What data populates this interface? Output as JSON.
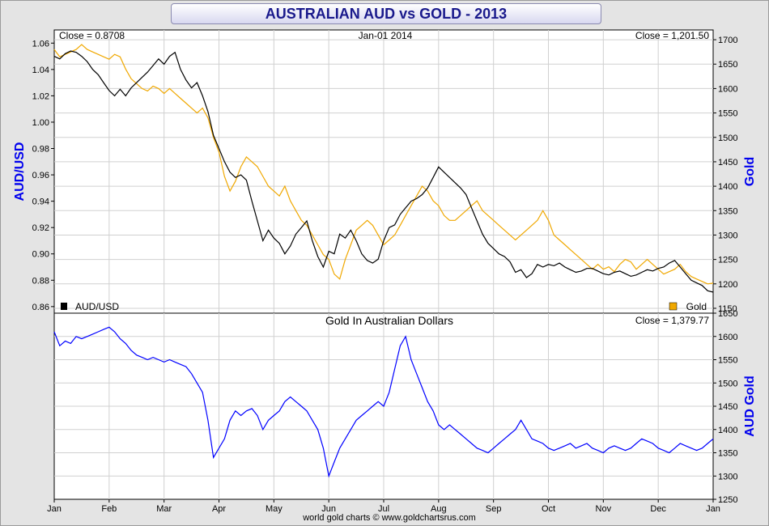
{
  "title": "AUSTRALIAN AUD vs GOLD - 2013",
  "footer": "world gold charts © www.goldchartsrus.com",
  "x_axis": {
    "labels": [
      "Jan",
      "Feb",
      "Mar",
      "Apr",
      "May",
      "Jun",
      "Jul",
      "Aug",
      "Sep",
      "Oct",
      "Nov",
      "Dec",
      "Jan"
    ]
  },
  "colors": {
    "aud": "#000000",
    "gold": "#f0a800",
    "aud_gold": "#0000ff",
    "axis_title": "#0000ee"
  },
  "chart_data": [
    {
      "type": "line",
      "header_left": "Close = 0.8708",
      "header_center": "Jan-01  2014",
      "header_right": "Close = 1,201.50",
      "left_axis": {
        "label": "AUD/USD",
        "range": [
          0.855,
          1.07
        ],
        "ticks": [
          "1.06",
          "1.04",
          "1.02",
          "1.00",
          "0.98",
          "0.96",
          "0.94",
          "0.92",
          "0.90",
          "0.88",
          "0.86"
        ]
      },
      "right_axis": {
        "label": "Gold",
        "range": [
          1140,
          1720
        ],
        "ticks": [
          "1700",
          "1650",
          "1600",
          "1550",
          "1500",
          "1450",
          "1400",
          "1350",
          "1300",
          "1250",
          "1200",
          "1150"
        ]
      },
      "legend": [
        {
          "name": "AUD/USD",
          "color": "#000000",
          "position": "bottom-left"
        },
        {
          "name": "Gold",
          "color": "#f0a800",
          "position": "bottom-right"
        }
      ],
      "series": [
        {
          "name": "AUD/USD",
          "axis": "left",
          "color": "#000000",
          "x": [
            0,
            0.1,
            0.2,
            0.3,
            0.4,
            0.5,
            0.6,
            0.7,
            0.8,
            0.9,
            1,
            1.1,
            1.2,
            1.3,
            1.4,
            1.5,
            1.6,
            1.7,
            1.8,
            1.9,
            2,
            2.1,
            2.2,
            2.3,
            2.4,
            2.5,
            2.6,
            2.7,
            2.8,
            2.9,
            3,
            3.1,
            3.2,
            3.3,
            3.4,
            3.5,
            3.6,
            3.7,
            3.8,
            3.9,
            4,
            4.1,
            4.2,
            4.3,
            4.4,
            4.5,
            4.6,
            4.7,
            4.8,
            4.9,
            5,
            5.1,
            5.2,
            5.3,
            5.4,
            5.5,
            5.6,
            5.7,
            5.8,
            5.9,
            6,
            6.1,
            6.2,
            6.3,
            6.4,
            6.5,
            6.6,
            6.7,
            6.8,
            6.9,
            7,
            7.1,
            7.2,
            7.3,
            7.4,
            7.5,
            7.6,
            7.7,
            7.8,
            7.9,
            8,
            8.1,
            8.2,
            8.3,
            8.4,
            8.5,
            8.6,
            8.7,
            8.8,
            8.9,
            9,
            9.1,
            9.2,
            9.3,
            9.4,
            9.5,
            9.6,
            9.7,
            9.8,
            9.9,
            10,
            10.1,
            10.2,
            10.3,
            10.4,
            10.5,
            10.6,
            10.7,
            10.8,
            10.9,
            11,
            11.1,
            11.2,
            11.3,
            11.4,
            11.5,
            11.6,
            11.7,
            11.8,
            11.9,
            12
          ],
          "values": [
            1.05,
            1.048,
            1.052,
            1.054,
            1.053,
            1.05,
            1.046,
            1.04,
            1.036,
            1.03,
            1.024,
            1.02,
            1.025,
            1.02,
            1.026,
            1.03,
            1.034,
            1.038,
            1.043,
            1.048,
            1.044,
            1.05,
            1.053,
            1.04,
            1.032,
            1.026,
            1.03,
            1.02,
            1.008,
            0.99,
            0.98,
            0.97,
            0.962,
            0.958,
            0.96,
            0.956,
            0.94,
            0.925,
            0.91,
            0.918,
            0.912,
            0.908,
            0.9,
            0.906,
            0.915,
            0.92,
            0.925,
            0.91,
            0.898,
            0.89,
            0.902,
            0.9,
            0.915,
            0.912,
            0.918,
            0.91,
            0.9,
            0.895,
            0.893,
            0.896,
            0.91,
            0.92,
            0.922,
            0.93,
            0.935,
            0.94,
            0.942,
            0.945,
            0.95,
            0.958,
            0.966,
            0.962,
            0.958,
            0.954,
            0.95,
            0.945,
            0.935,
            0.925,
            0.915,
            0.908,
            0.904,
            0.9,
            0.898,
            0.894,
            0.886,
            0.888,
            0.882,
            0.885,
            0.892,
            0.89,
            0.892,
            0.891,
            0.893,
            0.89,
            0.888,
            0.886,
            0.887,
            0.889,
            0.889,
            0.887,
            0.885,
            0.884,
            0.886,
            0.887,
            0.885,
            0.883,
            0.884,
            0.886,
            0.888,
            0.887,
            0.889,
            0.89,
            0.893,
            0.895,
            0.89,
            0.885,
            0.88,
            0.878,
            0.876,
            0.872,
            0.871
          ]
        },
        {
          "name": "Gold",
          "axis": "right",
          "color": "#f0a800",
          "x": [
            0,
            0.1,
            0.2,
            0.3,
            0.4,
            0.5,
            0.6,
            0.7,
            0.8,
            0.9,
            1,
            1.1,
            1.2,
            1.3,
            1.4,
            1.5,
            1.6,
            1.7,
            1.8,
            1.9,
            2,
            2.1,
            2.2,
            2.3,
            2.4,
            2.5,
            2.6,
            2.7,
            2.8,
            2.9,
            3,
            3.1,
            3.2,
            3.3,
            3.4,
            3.5,
            3.6,
            3.7,
            3.8,
            3.9,
            4,
            4.1,
            4.2,
            4.3,
            4.4,
            4.5,
            4.6,
            4.7,
            4.8,
            4.9,
            5,
            5.1,
            5.2,
            5.3,
            5.4,
            5.5,
            5.6,
            5.7,
            5.8,
            5.9,
            6,
            6.1,
            6.2,
            6.3,
            6.4,
            6.5,
            6.6,
            6.7,
            6.8,
            6.9,
            7,
            7.1,
            7.2,
            7.3,
            7.4,
            7.5,
            7.6,
            7.7,
            7.8,
            7.9,
            8,
            8.1,
            8.2,
            8.3,
            8.4,
            8.5,
            8.6,
            8.7,
            8.8,
            8.9,
            9,
            9.1,
            9.2,
            9.3,
            9.4,
            9.5,
            9.6,
            9.7,
            9.8,
            9.9,
            10,
            10.1,
            10.2,
            10.3,
            10.4,
            10.5,
            10.6,
            10.7,
            10.8,
            10.9,
            11,
            11.1,
            11.2,
            11.3,
            11.4,
            11.5,
            11.6,
            11.7,
            11.8,
            11.9,
            12
          ],
          "values": [
            1680,
            1665,
            1670,
            1675,
            1680,
            1690,
            1680,
            1675,
            1670,
            1665,
            1660,
            1670,
            1665,
            1640,
            1620,
            1610,
            1600,
            1595,
            1605,
            1600,
            1590,
            1600,
            1590,
            1580,
            1570,
            1560,
            1550,
            1560,
            1540,
            1500,
            1470,
            1420,
            1390,
            1410,
            1440,
            1460,
            1450,
            1440,
            1420,
            1400,
            1390,
            1380,
            1400,
            1370,
            1350,
            1330,
            1320,
            1300,
            1280,
            1260,
            1250,
            1220,
            1210,
            1250,
            1280,
            1310,
            1320,
            1330,
            1320,
            1300,
            1280,
            1290,
            1300,
            1320,
            1340,
            1360,
            1380,
            1400,
            1390,
            1370,
            1360,
            1340,
            1330,
            1330,
            1340,
            1350,
            1360,
            1370,
            1350,
            1340,
            1330,
            1320,
            1310,
            1300,
            1290,
            1300,
            1310,
            1320,
            1330,
            1350,
            1330,
            1300,
            1290,
            1280,
            1270,
            1260,
            1250,
            1240,
            1230,
            1240,
            1230,
            1235,
            1225,
            1240,
            1250,
            1245,
            1230,
            1240,
            1250,
            1240,
            1230,
            1220,
            1225,
            1230,
            1240,
            1225,
            1215,
            1210,
            1205,
            1200,
            1201.5
          ]
        }
      ]
    },
    {
      "type": "line",
      "title": "Gold In Australian Dollars",
      "header_right": "Close = 1,379.77",
      "right_axis": {
        "label": "AUD Gold",
        "range": [
          1250,
          1650
        ],
        "ticks": [
          "1650",
          "1600",
          "1550",
          "1500",
          "1450",
          "1400",
          "1350",
          "1300",
          "1250"
        ]
      },
      "series": [
        {
          "name": "AUD Gold",
          "axis": "right",
          "color": "#0000ff",
          "x": [
            0,
            0.1,
            0.2,
            0.3,
            0.4,
            0.5,
            0.6,
            0.7,
            0.8,
            0.9,
            1,
            1.1,
            1.2,
            1.3,
            1.4,
            1.5,
            1.6,
            1.7,
            1.8,
            1.9,
            2,
            2.1,
            2.2,
            2.3,
            2.4,
            2.5,
            2.6,
            2.7,
            2.8,
            2.9,
            3,
            3.1,
            3.2,
            3.3,
            3.4,
            3.5,
            3.6,
            3.7,
            3.8,
            3.9,
            4,
            4.1,
            4.2,
            4.3,
            4.4,
            4.5,
            4.6,
            4.7,
            4.8,
            4.9,
            5,
            5.1,
            5.2,
            5.3,
            5.4,
            5.5,
            5.6,
            5.7,
            5.8,
            5.9,
            6,
            6.1,
            6.2,
            6.3,
            6.4,
            6.5,
            6.6,
            6.7,
            6.8,
            6.9,
            7,
            7.1,
            7.2,
            7.3,
            7.4,
            7.5,
            7.6,
            7.7,
            7.8,
            7.9,
            8,
            8.1,
            8.2,
            8.3,
            8.4,
            8.5,
            8.6,
            8.7,
            8.8,
            8.9,
            9,
            9.1,
            9.2,
            9.3,
            9.4,
            9.5,
            9.6,
            9.7,
            9.8,
            9.9,
            10,
            10.1,
            10.2,
            10.3,
            10.4,
            10.5,
            10.6,
            10.7,
            10.8,
            10.9,
            11,
            11.1,
            11.2,
            11.3,
            11.4,
            11.5,
            11.6,
            11.7,
            11.8,
            11.9,
            12
          ],
          "values": [
            1610,
            1580,
            1590,
            1585,
            1600,
            1595,
            1600,
            1605,
            1610,
            1615,
            1620,
            1610,
            1595,
            1585,
            1570,
            1560,
            1555,
            1550,
            1555,
            1550,
            1545,
            1550,
            1545,
            1540,
            1535,
            1520,
            1500,
            1480,
            1420,
            1340,
            1360,
            1380,
            1420,
            1440,
            1430,
            1440,
            1445,
            1430,
            1400,
            1420,
            1430,
            1440,
            1460,
            1470,
            1460,
            1450,
            1440,
            1420,
            1400,
            1360,
            1300,
            1330,
            1360,
            1380,
            1400,
            1420,
            1430,
            1440,
            1450,
            1460,
            1450,
            1480,
            1530,
            1580,
            1600,
            1550,
            1520,
            1490,
            1460,
            1440,
            1410,
            1400,
            1410,
            1400,
            1390,
            1380,
            1370,
            1360,
            1355,
            1350,
            1360,
            1370,
            1380,
            1390,
            1400,
            1420,
            1400,
            1380,
            1375,
            1370,
            1360,
            1355,
            1360,
            1365,
            1370,
            1360,
            1365,
            1370,
            1360,
            1355,
            1350,
            1360,
            1365,
            1360,
            1355,
            1360,
            1370,
            1380,
            1375,
            1370,
            1360,
            1355,
            1350,
            1360,
            1370,
            1365,
            1360,
            1355,
            1360,
            1370,
            1379.77
          ]
        }
      ]
    }
  ]
}
